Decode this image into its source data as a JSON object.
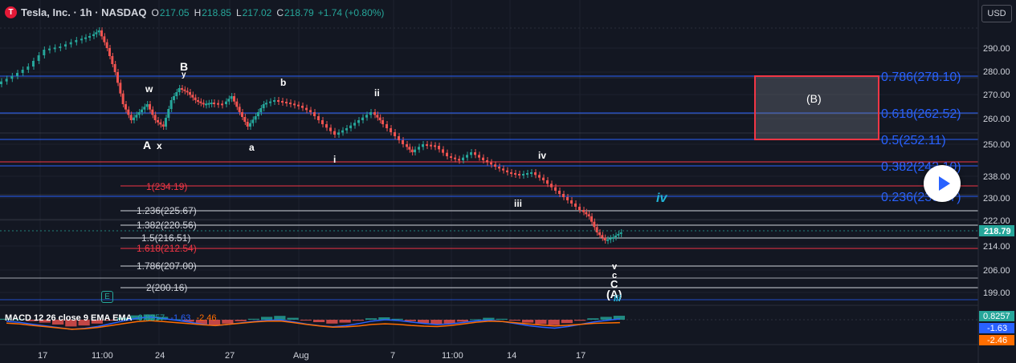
{
  "legend": {
    "logo_text": "T",
    "name": "Tesla, Inc. · 1h · NASDAQ",
    "open_label": "O",
    "open": "217.05",
    "high_label": "H",
    "high": "218.85",
    "low_label": "L",
    "low": "217.02",
    "close_label": "C",
    "close": "218.79",
    "change": "+1.74 (+0.80%)"
  },
  "currency_button": "USD",
  "price_axis": {
    "ticks": [
      "290.00",
      "280.00",
      "270.00",
      "260.00",
      "250.00",
      "238.00",
      "230.00",
      "222.00",
      "214.00",
      "206.00",
      "199.00"
    ],
    "current_price": "218.79"
  },
  "time_axis": {
    "ticks": [
      "17",
      "11:00",
      "24",
      "27",
      "Aug",
      "7",
      "11:00",
      "14",
      "17"
    ]
  },
  "fib_right": {
    "levels": [
      "0.786(278.10)",
      "0.618(262.52)",
      "0.5(252.11)",
      "0.382(242.10)",
      "0.236(230.27)"
    ],
    "box_label": "(B)"
  },
  "fib_left": {
    "red_levels": [
      "1(234.19)",
      "1.618(212.54)"
    ],
    "white_levels": [
      "1.236(225.67)",
      "1.382(220.56)",
      "1.5(216.51)",
      "1.786(207.00)",
      "2(200.16)"
    ]
  },
  "wave_labels": {
    "A": "A",
    "x": "x",
    "w": "w",
    "B": "B",
    "y": "y",
    "a": "a",
    "b": "b",
    "i": "i",
    "ii": "ii",
    "iii": "iii",
    "iv": "iv",
    "v": "v",
    "c": "c",
    "C": "C",
    "A_paren": "(A)",
    "iv_forecast": "iv",
    "iii_small": "iii"
  },
  "macd": {
    "name": "MACD 12 26 close 9 EMA EMA",
    "hist": "0.8257",
    "macd": "-1.63",
    "signal": "-2.46"
  },
  "macd_axis": {
    "hist": "0.8257",
    "macd": "-1.63",
    "signal": "-2.46"
  },
  "colors": {
    "up": "#26a69a",
    "down": "#ef5350",
    "fib_blue": "#2962ff",
    "fib_red": "#f23645",
    "forecast_cyan": "#22b5d8",
    "macd_line": "#2962ff",
    "signal_line": "#ff6d00"
  },
  "chart_data": {
    "type": "candlestick",
    "symbol": "TSLA",
    "interval": "1h",
    "ylim": [
      196,
      300
    ],
    "close_series": [
      239,
      245,
      254,
      262,
      270,
      276,
      282,
      288,
      285,
      280,
      276,
      270,
      262,
      255,
      250,
      246,
      244,
      247,
      242,
      240,
      245,
      252,
      256,
      250,
      248,
      247,
      245,
      246,
      249,
      252,
      250,
      247,
      245,
      243,
      241,
      238,
      236,
      233,
      230,
      228,
      224,
      221,
      218,
      214,
      213,
      215,
      217,
      218.79
    ],
    "macd_histogram": [
      0.2,
      0.1,
      -0.3,
      -0.6,
      -1.0,
      -1.4,
      -1.2,
      -0.8,
      -0.2,
      0.4,
      0.9,
      1.1,
      0.6,
      0.1,
      -0.4,
      -0.9,
      -1.2,
      -0.8,
      -0.3,
      0.2,
      0.6,
      0.8,
      0.4,
      -0.1,
      -0.5,
      -0.8,
      -0.6,
      -0.2,
      0.3,
      0.5,
      0.2,
      -0.3,
      -0.7,
      -1.0,
      -0.8,
      -0.4,
      0.1,
      0.4,
      0.2,
      -0.2,
      -0.6,
      -0.9,
      -1.1,
      -0.7,
      -0.2,
      0.3,
      0.6,
      0.8257
    ]
  }
}
